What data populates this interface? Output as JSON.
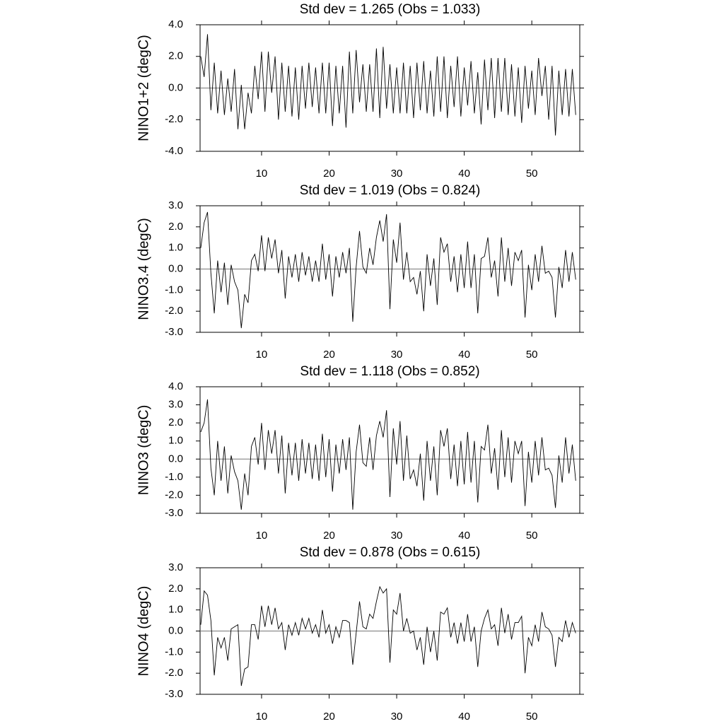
{
  "chart_data": [
    {
      "type": "line",
      "title": "Std dev = 1.265 (Obs = 1.033)",
      "ylabel": "NINO1+2 (degC)",
      "x": [
        1,
        1.5,
        2,
        2.5,
        3,
        3.5,
        4,
        4.5,
        5,
        5.5,
        6,
        6.5,
        7,
        7.5,
        8,
        8.5,
        9,
        9.5,
        10,
        10.5,
        11,
        11.5,
        12,
        12.5,
        13,
        13.5,
        14,
        14.5,
        15,
        15.5,
        16,
        16.5,
        17,
        17.5,
        18,
        18.5,
        19,
        19.5,
        20,
        20.5,
        21,
        21.5,
        22,
        22.5,
        23,
        23.5,
        24,
        24.5,
        25,
        25.5,
        26,
        26.5,
        27,
        27.5,
        28,
        28.5,
        29,
        29.5,
        30,
        30.5,
        31,
        31.5,
        32,
        32.5,
        33,
        33.5,
        34,
        34.5,
        35,
        35.5,
        36,
        36.5,
        37,
        37.5,
        38,
        38.5,
        39,
        39.5,
        40,
        40.5,
        41,
        41.5,
        42,
        42.5,
        43,
        43.5,
        44,
        44.5,
        45,
        45.5,
        46,
        46.5,
        47,
        47.5,
        48,
        48.5,
        49,
        49.5,
        50,
        50.5,
        51,
        51.5,
        52,
        52.5,
        53,
        53.5,
        54,
        54.5,
        55,
        55.5,
        56,
        56.5
      ],
      "values": [
        2.0,
        0.7,
        3.4,
        -1.4,
        1.6,
        -1.6,
        1.1,
        -1.7,
        0.6,
        -1.5,
        1.2,
        -2.6,
        0.2,
        -2.6,
        -0.3,
        -1.6,
        1.4,
        -0.7,
        2.3,
        -1.5,
        2.3,
        -0.3,
        2.0,
        -2.0,
        1.6,
        -1.5,
        1.4,
        -1.8,
        1.3,
        -2.0,
        1.4,
        -1.3,
        1.6,
        -1.2,
        1.3,
        -1.6,
        1.6,
        -1.6,
        1.6,
        -2.4,
        1.4,
        -1.6,
        1.4,
        -2.5,
        2.3,
        -1.6,
        2.4,
        -0.9,
        1.5,
        -1.5,
        1.5,
        -1.5,
        2.5,
        -1.9,
        2.6,
        -1.3,
        1.5,
        -1.6,
        1.3,
        -1.6,
        1.6,
        -1.6,
        1.4,
        -1.9,
        1.6,
        -1.4,
        1.7,
        -1.6,
        1.1,
        -1.8,
        2.0,
        -1.5,
        2.0,
        -1.9,
        1.4,
        -1.2,
        2.0,
        -1.8,
        1.3,
        -1.1,
        1.7,
        -1.6,
        1.0,
        -2.3,
        1.8,
        -1.4,
        1.9,
        -1.9,
        1.9,
        -1.5,
        1.9,
        -1.7,
        1.5,
        -1.8,
        1.3,
        -2.2,
        1.4,
        -1.3,
        1.1,
        -1.7,
        1.9,
        -0.5,
        1.4,
        -2.0,
        1.4,
        -3.0,
        1.1,
        -1.7,
        1.2,
        -1.8,
        1.2,
        -1.7
      ],
      "color": "#000000",
      "xlim": [
        0.9,
        57.1
      ],
      "xticks": [
        10,
        20,
        30,
        40,
        50
      ],
      "ylim": [
        -4,
        4
      ],
      "yticks": [
        {
          "value": -4,
          "label": "-4.0"
        },
        {
          "value": -2,
          "label": "-2.0"
        },
        {
          "value": 0,
          "label": "0.0"
        },
        {
          "value": 2,
          "label": "2.0"
        },
        {
          "value": 4,
          "label": "4.0"
        }
      ]
    },
    {
      "type": "line",
      "title": "Std dev = 1.019 (Obs = 0.824)",
      "ylabel": "NINO3.4 (degC)",
      "x": [
        1,
        1.5,
        2,
        2.5,
        3,
        3.5,
        4,
        4.5,
        5,
        5.5,
        6,
        6.5,
        7,
        7.5,
        8,
        8.5,
        9,
        9.5,
        10,
        10.5,
        11,
        11.5,
        12,
        12.5,
        13,
        13.5,
        14,
        14.5,
        15,
        15.5,
        16,
        16.5,
        17,
        17.5,
        18,
        18.5,
        19,
        19.5,
        20,
        20.5,
        21,
        21.5,
        22,
        22.5,
        23,
        23.5,
        24,
        24.5,
        25,
        25.5,
        26,
        26.5,
        27,
        27.5,
        28,
        28.5,
        29,
        29.5,
        30,
        30.5,
        31,
        31.5,
        32,
        32.5,
        33,
        33.5,
        34,
        34.5,
        35,
        35.5,
        36,
        36.5,
        37,
        37.5,
        38,
        38.5,
        39,
        39.5,
        40,
        40.5,
        41,
        41.5,
        42,
        42.5,
        43,
        43.5,
        44,
        44.5,
        45,
        45.5,
        46,
        46.5,
        47,
        47.5,
        48,
        48.5,
        49,
        49.5,
        50,
        50.5,
        51,
        51.5,
        52,
        52.5,
        53,
        53.5,
        54,
        54.5,
        55,
        55.5,
        56,
        56.5
      ],
      "values": [
        1.0,
        2.2,
        2.7,
        -0.2,
        -2.1,
        0.4,
        -1.1,
        0.3,
        -1.7,
        0.2,
        -0.6,
        -1.0,
        -2.8,
        -1.2,
        -1.6,
        0.4,
        0.7,
        -0.1,
        1.6,
        -0.1,
        1.5,
        0.5,
        1.4,
        -0.2,
        0.9,
        -1.4,
        0.6,
        -0.4,
        0.7,
        -0.6,
        0.8,
        -0.3,
        0.6,
        -0.6,
        0.4,
        -0.6,
        1.2,
        -0.5,
        0.7,
        -1.3,
        0.6,
        -0.4,
        0.8,
        -0.2,
        1.0,
        -2.5,
        0.1,
        1.8,
        0.1,
        -0.2,
        1.0,
        0.2,
        1.5,
        2.3,
        1.3,
        2.6,
        -1.9,
        1.4,
        0.3,
        2.2,
        -0.5,
        0.8,
        -0.6,
        -0.4,
        -1.2,
        -0.1,
        -2.0,
        0.7,
        -0.8,
        0.5,
        -1.7,
        1.5,
        0.8,
        1.2,
        -0.6,
        0.6,
        -1.1,
        0.7,
        -0.9,
        1.3,
        -0.9,
        0.7,
        -2.1,
        0.5,
        0.6,
        1.5,
        -0.4,
        0.4,
        -1.3,
        1.5,
        -0.6,
        1.0,
        -0.8,
        0.8,
        0.4,
        0.9,
        -2.3,
        0.2,
        -1.0,
        0.7,
        -0.6,
        1.1,
        -0.2,
        -0.1,
        -0.4,
        -2.3,
        0.1,
        -0.9,
        0.9,
        -0.6,
        0.8,
        -0.5
      ],
      "color": "#000000",
      "xlim": [
        0.9,
        57.1
      ],
      "xticks": [
        10,
        20,
        30,
        40,
        50
      ],
      "ylim": [
        -3,
        3
      ],
      "yticks": [
        {
          "value": -3,
          "label": "-3.0"
        },
        {
          "value": -2,
          "label": "-2.0"
        },
        {
          "value": -1,
          "label": "-1.0"
        },
        {
          "value": 0,
          "label": "0.0"
        },
        {
          "value": 1,
          "label": "1.0"
        },
        {
          "value": 2,
          "label": "2.0"
        },
        {
          "value": 3,
          "label": "3.0"
        }
      ]
    },
    {
      "type": "line",
      "title": "Std dev = 1.118 (Obs = 0.852)",
      "ylabel": "NINO3 (degC)",
      "x": [
        1,
        1.5,
        2,
        2.5,
        3,
        3.5,
        4,
        4.5,
        5,
        5.5,
        6,
        6.5,
        7,
        7.5,
        8,
        8.5,
        9,
        9.5,
        10,
        10.5,
        11,
        11.5,
        12,
        12.5,
        13,
        13.5,
        14,
        14.5,
        15,
        15.5,
        16,
        16.5,
        17,
        17.5,
        18,
        18.5,
        19,
        19.5,
        20,
        20.5,
        21,
        21.5,
        22,
        22.5,
        23,
        23.5,
        24,
        24.5,
        25,
        25.5,
        26,
        26.5,
        27,
        27.5,
        28,
        28.5,
        29,
        29.5,
        30,
        30.5,
        31,
        31.5,
        32,
        32.5,
        33,
        33.5,
        34,
        34.5,
        35,
        35.5,
        36,
        36.5,
        37,
        37.5,
        38,
        38.5,
        39,
        39.5,
        40,
        40.5,
        41,
        41.5,
        42,
        42.5,
        43,
        43.5,
        44,
        44.5,
        45,
        45.5,
        46,
        46.5,
        47,
        47.5,
        48,
        48.5,
        49,
        49.5,
        50,
        50.5,
        51,
        51.5,
        52,
        52.5,
        53,
        53.5,
        54,
        54.5,
        55,
        55.5,
        56,
        56.5
      ],
      "values": [
        1.5,
        2.0,
        3.3,
        -0.5,
        -2.0,
        1.0,
        -1.2,
        0.7,
        -1.9,
        0.2,
        -0.7,
        -1.2,
        -2.8,
        -0.8,
        -2.0,
        0.7,
        1.2,
        -0.3,
        2.0,
        -0.6,
        1.6,
        0.3,
        1.6,
        -0.8,
        1.3,
        -1.9,
        0.9,
        -0.9,
        0.9,
        -1.2,
        1.1,
        -0.8,
        0.9,
        -1.1,
        0.8,
        -1.2,
        1.4,
        -1.0,
        1.1,
        -1.8,
        0.8,
        -0.8,
        1.1,
        -0.6,
        1.2,
        -2.8,
        0.4,
        1.9,
        -0.2,
        -0.4,
        1.2,
        -0.6,
        1.3,
        2.1,
        1.2,
        2.7,
        -2.1,
        1.7,
        -0.3,
        2.1,
        -1.2,
        1.3,
        -1.1,
        -0.6,
        -1.5,
        0.3,
        -2.3,
        1.0,
        -1.2,
        0.7,
        -2.0,
        1.6,
        0.7,
        1.7,
        -1.1,
        0.8,
        -1.5,
        1.0,
        -1.4,
        1.5,
        -1.3,
        1.0,
        -2.4,
        0.7,
        0.5,
        1.9,
        -0.8,
        0.6,
        -1.7,
        1.6,
        -1.0,
        1.2,
        -1.3,
        1.0,
        0.3,
        1.0,
        -2.6,
        0.4,
        -1.3,
        1.0,
        -0.9,
        1.2,
        -0.6,
        -0.5,
        -0.9,
        -2.7,
        0.2,
        -1.3,
        1.2,
        -0.8,
        0.8,
        -1.2
      ],
      "color": "#000000",
      "xlim": [
        0.9,
        57.1
      ],
      "xticks": [
        10,
        20,
        30,
        40,
        50
      ],
      "ylim": [
        -3,
        4
      ],
      "yticks": [
        {
          "value": -3,
          "label": "-3.0"
        },
        {
          "value": -2,
          "label": "-2.0"
        },
        {
          "value": -1,
          "label": "-1.0"
        },
        {
          "value": 0,
          "label": "0.0"
        },
        {
          "value": 1,
          "label": "1.0"
        },
        {
          "value": 2,
          "label": "2.0"
        },
        {
          "value": 3,
          "label": "3.0"
        },
        {
          "value": 4,
          "label": "4.0"
        }
      ]
    },
    {
      "type": "line",
      "title": "Std dev = 0.878 (Obs = 0.615)",
      "ylabel": "NINO4 (degC)",
      "x": [
        1,
        1.5,
        2,
        2.5,
        3,
        3.5,
        4,
        4.5,
        5,
        5.5,
        6,
        6.5,
        7,
        7.5,
        8,
        8.5,
        9,
        9.5,
        10,
        10.5,
        11,
        11.5,
        12,
        12.5,
        13,
        13.5,
        14,
        14.5,
        15,
        15.5,
        16,
        16.5,
        17,
        17.5,
        18,
        18.5,
        19,
        19.5,
        20,
        20.5,
        21,
        21.5,
        22,
        22.5,
        23,
        23.5,
        24,
        24.5,
        25,
        25.5,
        26,
        26.5,
        27,
        27.5,
        28,
        28.5,
        29,
        29.5,
        30,
        30.5,
        31,
        31.5,
        32,
        32.5,
        33,
        33.5,
        34,
        34.5,
        35,
        35.5,
        36,
        36.5,
        37,
        37.5,
        38,
        38.5,
        39,
        39.5,
        40,
        40.5,
        41,
        41.5,
        42,
        42.5,
        43,
        43.5,
        44,
        44.5,
        45,
        45.5,
        46,
        46.5,
        47,
        47.5,
        48,
        48.5,
        49,
        49.5,
        50,
        50.5,
        51,
        51.5,
        52,
        52.5,
        53,
        53.5,
        54,
        54.5,
        55,
        55.5,
        56,
        56.5
      ],
      "values": [
        0.3,
        1.9,
        1.7,
        0.5,
        -2.1,
        -0.3,
        -0.8,
        -0.3,
        -1.4,
        0.1,
        0.2,
        0.3,
        -2.6,
        -1.8,
        -1.7,
        0.3,
        0.3,
        -0.4,
        1.2,
        0.2,
        1.2,
        0.3,
        1.1,
        0.1,
        0.4,
        -0.9,
        0.3,
        -0.2,
        0.4,
        -0.2,
        0.6,
        0.1,
        0.6,
        -0.1,
        0.3,
        -0.3,
        1.0,
        -0.1,
        0.3,
        -0.6,
        0.2,
        -0.3,
        0.5,
        0.5,
        0.4,
        -1.6,
        -0.1,
        1.4,
        0.2,
        0.1,
        0.8,
        0.6,
        1.4,
        2.1,
        1.8,
        2.0,
        -1.5,
        1.0,
        0.8,
        1.8,
        0.0,
        0.6,
        -0.1,
        0.0,
        -0.9,
        -0.3,
        -1.6,
        0.2,
        -1.0,
        0.0,
        -1.4,
        0.9,
        0.8,
        1.1,
        -0.3,
        0.4,
        -0.6,
        0.4,
        -0.5,
        0.8,
        -0.5,
        0.2,
        -1.7,
        0.0,
        0.6,
        1.0,
        0.1,
        0.3,
        -0.7,
        1.1,
        -0.1,
        0.8,
        -0.4,
        0.4,
        0.4,
        0.7,
        -2.0,
        -0.3,
        -0.7,
        0.3,
        -0.5,
        0.9,
        0.2,
        0.1,
        -0.2,
        -1.7,
        -0.3,
        -0.5,
        0.5,
        -0.3,
        0.4,
        -0.1
      ],
      "color": "#000000",
      "xlim": [
        0.9,
        57.1
      ],
      "xticks": [
        10,
        20,
        30,
        40,
        50
      ],
      "ylim": [
        -3,
        3
      ],
      "yticks": [
        {
          "value": -3,
          "label": "-3.0"
        },
        {
          "value": -2,
          "label": "-2.0"
        },
        {
          "value": -1,
          "label": "-1.0"
        },
        {
          "value": 0,
          "label": "0.0"
        },
        {
          "value": 1,
          "label": "1.0"
        },
        {
          "value": 2,
          "label": "2.0"
        },
        {
          "value": 3,
          "label": "3.0"
        }
      ]
    }
  ]
}
